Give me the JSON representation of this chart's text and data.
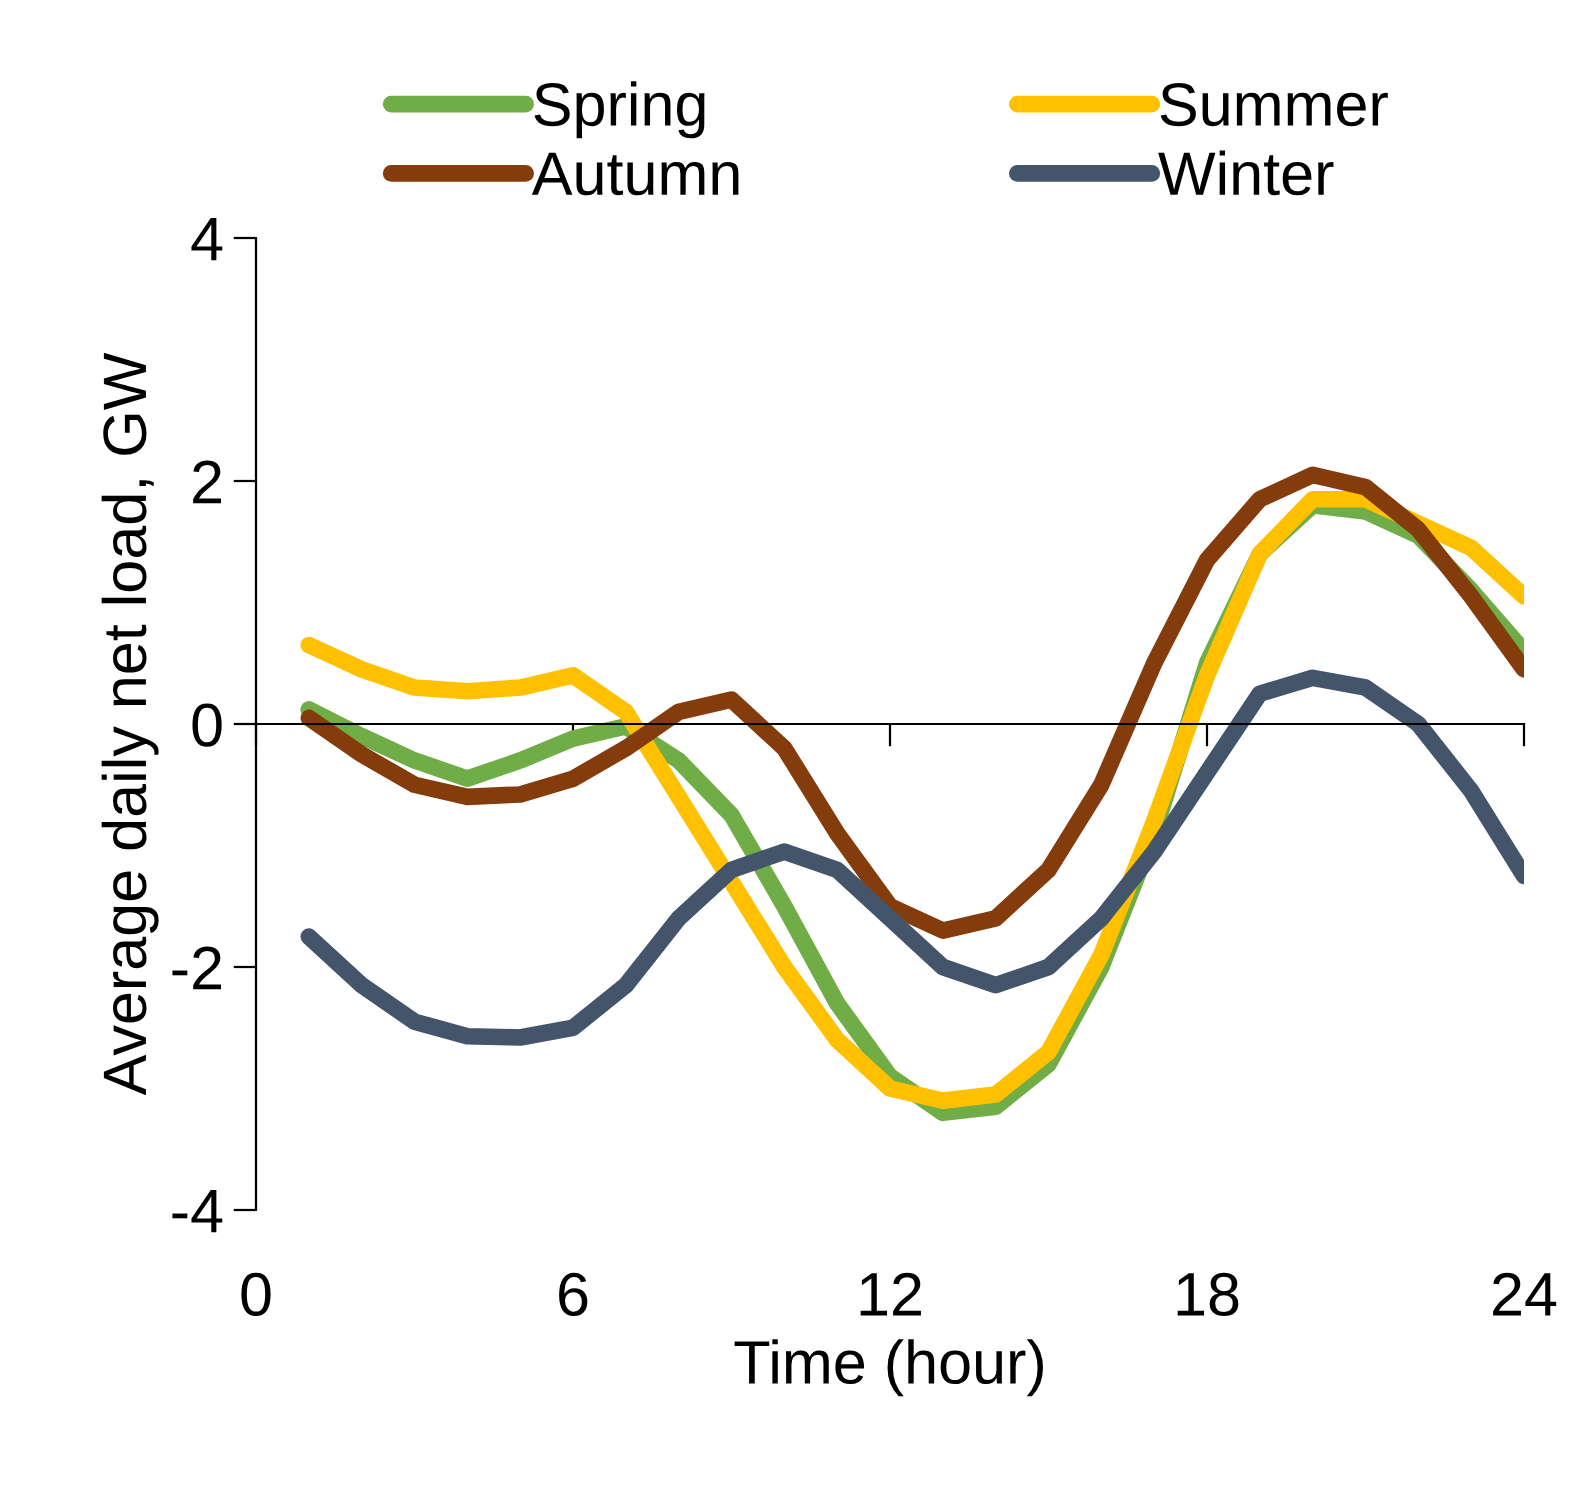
{
  "chart_data": {
    "type": "line",
    "xlabel": "Time (hour)",
    "ylabel": "Average daily net load, GW",
    "x": [
      1,
      2,
      3,
      4,
      5,
      6,
      7,
      8,
      9,
      10,
      11,
      12,
      13,
      14,
      15,
      16,
      17,
      18,
      19,
      20,
      21,
      22,
      23,
      24
    ],
    "series": [
      {
        "name": "Spring",
        "color": "#70ad47",
        "values": [
          0.12,
          -0.1,
          -0.3,
          -0.45,
          -0.3,
          -0.12,
          -0.02,
          -0.3,
          -0.75,
          -1.5,
          -2.3,
          -2.9,
          -3.2,
          -3.15,
          -2.8,
          -2.0,
          -0.9,
          0.5,
          1.4,
          1.8,
          1.75,
          1.55,
          1.1,
          0.6
        ]
      },
      {
        "name": "Summer",
        "color": "#ffc000",
        "values": [
          0.65,
          0.45,
          0.3,
          0.27,
          0.3,
          0.4,
          0.1,
          -0.6,
          -1.3,
          -2.0,
          -2.6,
          -3.0,
          -3.1,
          -3.05,
          -2.7,
          -1.9,
          -0.8,
          0.4,
          1.4,
          1.85,
          1.85,
          1.65,
          1.45,
          1.05
        ]
      },
      {
        "name": "Autumn",
        "color": "#843c0c",
        "values": [
          0.05,
          -0.25,
          -0.5,
          -0.6,
          -0.58,
          -0.45,
          -0.2,
          0.1,
          0.2,
          -0.2,
          -0.9,
          -1.5,
          -1.7,
          -1.6,
          -1.2,
          -0.5,
          0.5,
          1.35,
          1.85,
          2.05,
          1.95,
          1.6,
          1.05,
          0.45
        ]
      },
      {
        "name": "Winter",
        "color": "#44546a",
        "values": [
          -1.75,
          -2.15,
          -2.45,
          -2.57,
          -2.58,
          -2.5,
          -2.15,
          -1.6,
          -1.2,
          -1.05,
          -1.2,
          -1.6,
          -2.0,
          -2.15,
          -2.0,
          -1.6,
          -1.05,
          -0.4,
          0.25,
          0.38,
          0.3,
          0.0,
          -0.55,
          -1.25
        ]
      }
    ],
    "xlim": [
      0,
      24
    ],
    "xticks": [
      0,
      6,
      12,
      18,
      24
    ],
    "ylim": [
      -4,
      4
    ],
    "yticks": [
      -4,
      -2,
      0,
      2,
      4
    ],
    "legend": "top",
    "marker": "none",
    "line_style": "solid"
  }
}
